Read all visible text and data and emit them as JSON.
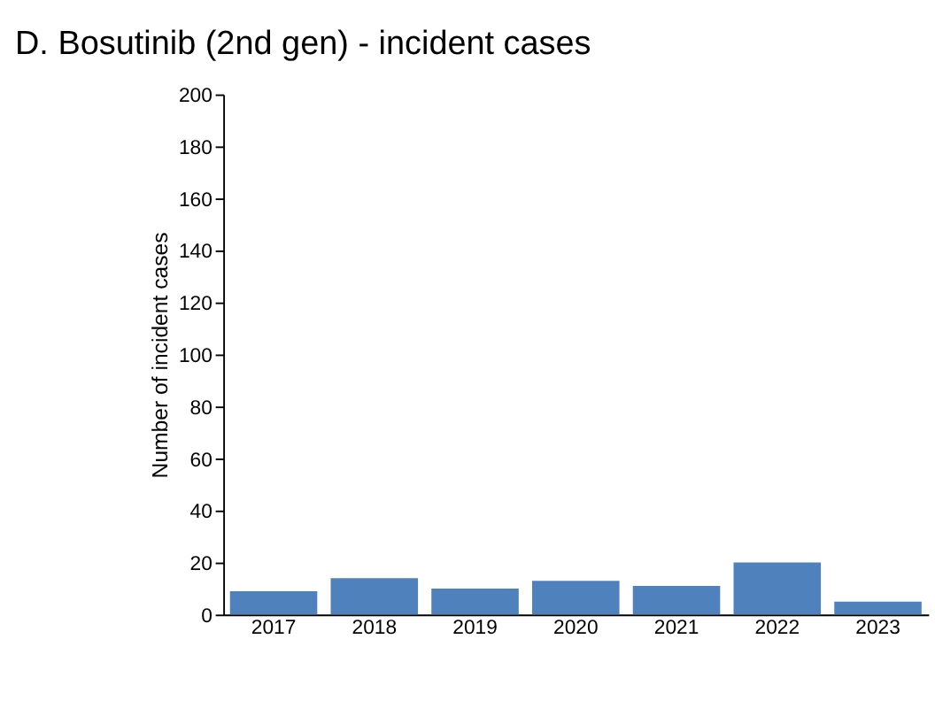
{
  "chart_data": {
    "type": "bar",
    "title": "D. Bosutinib (2nd gen) - incident cases",
    "ylabel": "Number of incident cases",
    "categories": [
      "2017",
      "2018",
      "2019",
      "2020",
      "2021",
      "2022",
      "2023"
    ],
    "values": [
      9,
      14,
      10,
      13,
      11,
      20,
      5
    ],
    "color": "#4f81bd",
    "ylim": [
      0,
      200
    ],
    "yticks": [
      0,
      20,
      40,
      60,
      80,
      100,
      120,
      140,
      160,
      180,
      200
    ]
  }
}
